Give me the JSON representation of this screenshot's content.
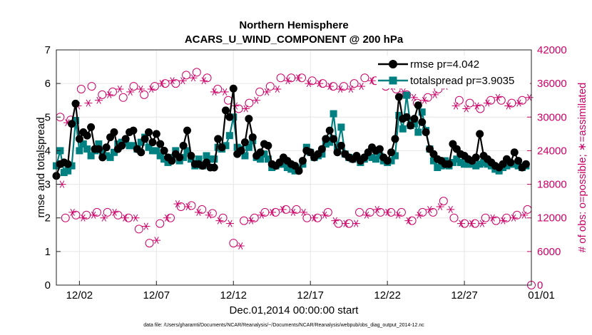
{
  "chart_data": {
    "type": "line",
    "title": "Northern Hemisphere",
    "subtitle": "ACARS_U_WIND_COMPONENT @ 200 hPa",
    "xlabel": "Dec.01,2014 00:00:00 start",
    "ylabel": "rmse and totalspread",
    "y2label": "# of obs: o=possible; ∗=assimilated",
    "footnote": "data file: /Users/gharamti/Documents/NCAR/Reanalysis/~/Documents/NCAR/Reanalysis/webpub/obs_diag_output_2014-12.nc",
    "xlim": [
      0.5,
      31.35
    ],
    "ylim": [
      0,
      7
    ],
    "y2lim": [
      0,
      42000
    ],
    "x_ticks": [
      {
        "v": 2,
        "label": "12/02"
      },
      {
        "v": 7,
        "label": "12/07"
      },
      {
        "v": 12,
        "label": "12/12"
      },
      {
        "v": 17,
        "label": "12/17"
      },
      {
        "v": 22,
        "label": "12/22"
      },
      {
        "v": 27,
        "label": "12/27"
      },
      {
        "v": 32,
        "label": "01/01"
      }
    ],
    "y_ticks": [
      0,
      1,
      2,
      3,
      4,
      5,
      6,
      7
    ],
    "y2_ticks": [
      0,
      6000,
      12000,
      18000,
      24000,
      30000,
      36000,
      42000
    ],
    "x_start": 0.5,
    "x_step": 0.25,
    "series": [
      {
        "name": "rmse",
        "legend": "rmse pr=4.042",
        "color": "#000000",
        "marker": "circle",
        "values": [
          3.25,
          3.6,
          3.65,
          3.6,
          4.8,
          5.4,
          4.35,
          4.55,
          4.45,
          4.7,
          4.05,
          4.05,
          3.8,
          4.1,
          4.4,
          4.55,
          4.05,
          4.15,
          4.35,
          4.55,
          4.6,
          4.05,
          3.95,
          4.35,
          4.55,
          4.25,
          4.5,
          4.2,
          4.0,
          3.8,
          3.7,
          3.9,
          3.8,
          4.15,
          4.6,
          3.85,
          3.6,
          3.6,
          3.55,
          3.65,
          3.5,
          3.5,
          4.35,
          4.1,
          5.2,
          5.0,
          5.85,
          3.9,
          4.0,
          4.25,
          4.95,
          4.4,
          3.85,
          3.95,
          4.2,
          4.15,
          3.6,
          3.55,
          3.65,
          3.8,
          3.7,
          3.6,
          3.55,
          3.4,
          3.7,
          4.0,
          3.95,
          3.8,
          3.9,
          4.05,
          4.35,
          4.6,
          4.35,
          3.95,
          4.15,
          3.9,
          3.8,
          3.75,
          3.85,
          3.7,
          3.8,
          3.95,
          4.1,
          4.0,
          4.05,
          3.8,
          3.7,
          3.95,
          4.35,
          5.6,
          4.95,
          5.0,
          4.75,
          4.95,
          5.35,
          4.85,
          4.55,
          4.05,
          3.9,
          3.75,
          3.7,
          3.6,
          3.6,
          4.2,
          4.05,
          3.9,
          3.85,
          3.75,
          3.7,
          3.8,
          4.5,
          3.85,
          3.75,
          3.65,
          3.55,
          3.5,
          3.6,
          3.75,
          3.65,
          3.95,
          3.7,
          3.5,
          3.6
        ]
      },
      {
        "name": "totalspread",
        "legend": "totalspread pr=3.9035",
        "color": "#008080",
        "marker": "square",
        "values": [
          3.55,
          4.0,
          3.35,
          3.4,
          3.55,
          4.9,
          4.0,
          4.2,
          4.05,
          3.85,
          4.0,
          4.2,
          3.95,
          3.85,
          3.8,
          3.95,
          4.2,
          4.25,
          4.25,
          4.15,
          4.15,
          4.05,
          4.25,
          4.4,
          4.1,
          4.0,
          4.0,
          3.85,
          3.75,
          3.65,
          3.8,
          4.0,
          3.7,
          3.8,
          4.0,
          3.75,
          3.55,
          3.75,
          3.55,
          3.85,
          3.75,
          3.75,
          4.1,
          4.05,
          4.15,
          4.45,
          5.0,
          4.1,
          4.05,
          3.85,
          4.1,
          4.3,
          3.8,
          3.75,
          3.9,
          3.75,
          3.5,
          3.55,
          3.6,
          3.6,
          3.5,
          3.45,
          3.4,
          3.45,
          3.6,
          4.1,
          3.95,
          3.8,
          3.85,
          3.9,
          4.2,
          4.25,
          5.1,
          4.1,
          4.7,
          3.9,
          3.8,
          3.75,
          3.8,
          3.65,
          3.75,
          3.85,
          3.8,
          3.75,
          3.85,
          3.7,
          3.65,
          3.7,
          3.85,
          5.05,
          4.65,
          5.65,
          4.75,
          4.8,
          4.55,
          5.15,
          4.6,
          4.05,
          3.7,
          3.5,
          3.55,
          3.7,
          3.55,
          3.65,
          3.75,
          3.65,
          3.6,
          3.6,
          3.6,
          3.55,
          3.6,
          3.65,
          3.6,
          3.55,
          3.45,
          3.4,
          3.5,
          3.55,
          3.6,
          3.6,
          3.55,
          3.5,
          3.55
        ]
      },
      {
        "name": "obs possible (even hours)",
        "legend": "",
        "color": "#cc0066",
        "marker": "open-circle",
        "axis": "right",
        "values": [
          30000,
          12000,
          29500,
          12500,
          35000,
          12500,
          35500,
          13000,
          34000,
          13000,
          34500,
          12500,
          33500,
          12000,
          35500,
          10000,
          34000,
          7500,
          35500,
          11000,
          36000,
          12000,
          36000,
          14000,
          37500,
          14200,
          38000,
          13500,
          37000,
          12800,
          35000,
          12000,
          33000,
          7500,
          31500,
          11500,
          32500,
          12000,
          34500,
          13000,
          35500,
          13000,
          37000,
          13500,
          37000,
          13500,
          37000,
          12000,
          36500,
          12000,
          36000,
          13000,
          35500,
          11000,
          35500,
          11000,
          36000,
          13000,
          37000,
          13000,
          36500,
          13000,
          35500,
          13000,
          35000,
          13000,
          34000,
          11500,
          32500,
          13000,
          33500,
          13000,
          35000,
          15000,
          37000,
          12000,
          33000,
          11000,
          32500,
          11000,
          31500,
          12000,
          33000,
          11500,
          33000,
          12000,
          32500,
          12500,
          33000,
          13500
        ]
      },
      {
        "name": "obs assimilated (odd hours)",
        "legend": "",
        "color": "#cc0066",
        "marker": "asterisk",
        "axis": "right",
        "values": [
          18000,
          29000,
          13000,
          32000,
          12000,
          32500,
          12500,
          33000,
          12000,
          34000,
          13000,
          35000,
          12000,
          34500,
          12000,
          35000,
          10500,
          35000,
          8000,
          36000,
          12000,
          36500,
          14500,
          36500,
          14000,
          37000,
          13000,
          36500,
          12500,
          34500,
          11500,
          34500,
          11000,
          32000,
          7000,
          31500,
          11500,
          33000,
          12500,
          34500,
          13000,
          35000,
          13500,
          36500,
          13000,
          37000,
          13000,
          36000,
          12000,
          36000,
          12500,
          35500,
          11500,
          35000,
          11000,
          35000,
          11000,
          35500,
          12500,
          36500,
          13500,
          36000,
          13000,
          35500,
          12500,
          34500,
          11500,
          33500,
          12500,
          33000,
          13500,
          34000,
          14000,
          35500,
          13500,
          32000,
          11000,
          31500,
          11000,
          32000,
          11000,
          32500,
          12000,
          33500,
          11500,
          32000,
          12000,
          32500,
          12500,
          33500
        ]
      }
    ]
  },
  "axis_colors": {
    "left": "#000000",
    "right": "#cc0066"
  },
  "pos_x": [
    1.06,
    2.07,
    3.05,
    3.56,
    4.06,
    4.55,
    5.06,
    5.57,
    6.06,
    6.55,
    7.06,
    7.57,
    8.06,
    8.55,
    9.06,
    9.57,
    10.06,
    10.55,
    11.06,
    11.57,
    12.06,
    12.55,
    13.06,
    13.57,
    14.06,
    14.55,
    15.06,
    15.57,
    16.06,
    16.55,
    17.06,
    17.57,
    18.06,
    18.55,
    19.06,
    19.57,
    20.06,
    20.55,
    21.06,
    21.57,
    22.06,
    22.55,
    23.06,
    23.57,
    24.06,
    24.55,
    25.06,
    25.57,
    26.06,
    26.55,
    27.06,
    27.57,
    28.06,
    28.55,
    29.06,
    29.57,
    30.06,
    30.55,
    31.06,
    31.57,
    32.06,
    32.57
  ]
}
